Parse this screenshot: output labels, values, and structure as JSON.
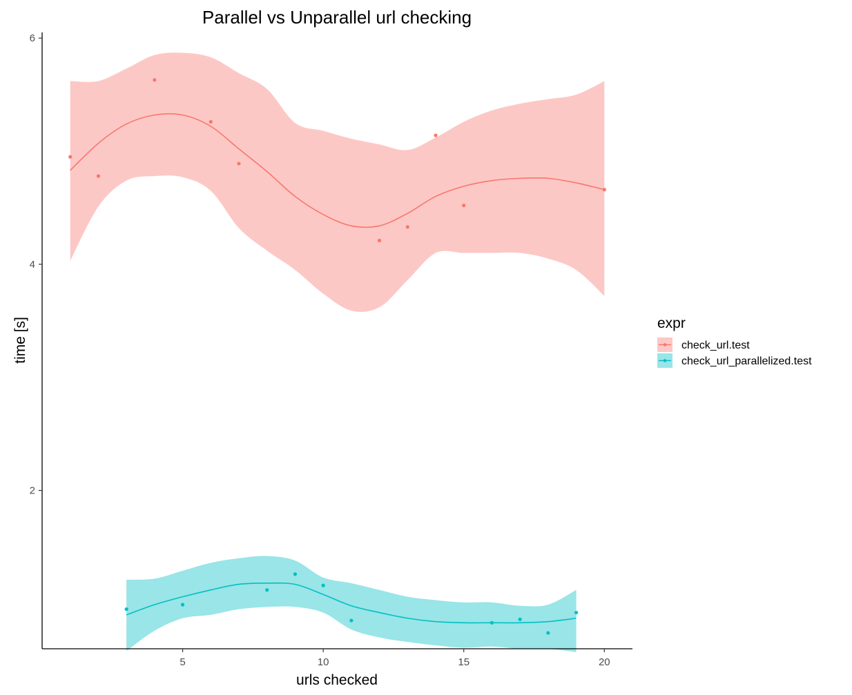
{
  "chart_data": {
    "type": "scatter",
    "title": "Parallel vs Unparallel url checking",
    "xlabel": "urls checked",
    "ylabel": "time [s]",
    "xlim": [
      0.0,
      21.0
    ],
    "ylim": [
      0.6,
      6.05
    ],
    "x_ticks": [
      5,
      10,
      15,
      20
    ],
    "y_ticks": [
      2,
      4,
      6
    ],
    "grid": false,
    "legend": {
      "title": "expr",
      "position": "right"
    },
    "series": [
      {
        "name": "check_url.test",
        "color": "#F8766D",
        "band_color": "#F8766D",
        "points": [
          [
            1,
            4.95
          ],
          [
            2,
            4.78
          ],
          [
            4,
            5.63
          ],
          [
            6,
            5.26
          ],
          [
            7,
            4.89
          ],
          [
            12,
            4.21
          ],
          [
            13,
            4.33
          ],
          [
            14,
            5.14
          ],
          [
            15,
            4.52
          ],
          [
            20,
            4.66
          ]
        ],
        "smooth": [
          [
            1,
            4.83
          ],
          [
            2,
            5.07
          ],
          [
            3,
            5.24
          ],
          [
            4,
            5.32
          ],
          [
            5,
            5.32
          ],
          [
            6,
            5.22
          ],
          [
            7,
            5.02
          ],
          [
            8,
            4.82
          ],
          [
            9,
            4.6
          ],
          [
            10,
            4.44
          ],
          [
            11,
            4.34
          ],
          [
            12,
            4.34
          ],
          [
            13,
            4.45
          ],
          [
            14,
            4.6
          ],
          [
            15,
            4.69
          ],
          [
            16,
            4.74
          ],
          [
            17,
            4.76
          ],
          [
            18,
            4.76
          ],
          [
            19,
            4.72
          ],
          [
            20,
            4.66
          ]
        ],
        "band_upper": [
          [
            1,
            5.62
          ],
          [
            2,
            5.62
          ],
          [
            3,
            5.73
          ],
          [
            4,
            5.85
          ],
          [
            5,
            5.87
          ],
          [
            6,
            5.83
          ],
          [
            7,
            5.69
          ],
          [
            8,
            5.55
          ],
          [
            9,
            5.25
          ],
          [
            10,
            5.18
          ],
          [
            11,
            5.11
          ],
          [
            12,
            5.06
          ],
          [
            13,
            5.01
          ],
          [
            14,
            5.12
          ],
          [
            15,
            5.26
          ],
          [
            16,
            5.36
          ],
          [
            17,
            5.42
          ],
          [
            18,
            5.46
          ],
          [
            19,
            5.5
          ],
          [
            20,
            5.62
          ]
        ],
        "band_lower": [
          [
            1,
            4.03
          ],
          [
            2,
            4.51
          ],
          [
            3,
            4.74
          ],
          [
            4,
            4.78
          ],
          [
            5,
            4.77
          ],
          [
            6,
            4.65
          ],
          [
            7,
            4.32
          ],
          [
            8,
            4.12
          ],
          [
            9,
            3.95
          ],
          [
            10,
            3.74
          ],
          [
            11,
            3.59
          ],
          [
            12,
            3.62
          ],
          [
            13,
            3.86
          ],
          [
            14,
            4.1
          ],
          [
            15,
            4.1
          ],
          [
            16,
            4.1
          ],
          [
            17,
            4.1
          ],
          [
            18,
            4.05
          ],
          [
            19,
            3.95
          ],
          [
            20,
            3.72
          ]
        ]
      },
      {
        "name": "check_url_parallelized.test",
        "color": "#00BFC4",
        "band_color": "#00BFC4",
        "points": [
          [
            3,
            0.95
          ],
          [
            5,
            0.99
          ],
          [
            8,
            1.12
          ],
          [
            9,
            1.26
          ],
          [
            10,
            1.16
          ],
          [
            11,
            0.85
          ],
          [
            16,
            0.83
          ],
          [
            17,
            0.86
          ],
          [
            18,
            0.74
          ],
          [
            19,
            0.92
          ]
        ],
        "smooth": [
          [
            3,
            0.9
          ],
          [
            4,
            0.99
          ],
          [
            5,
            1.06
          ],
          [
            6,
            1.12
          ],
          [
            7,
            1.17
          ],
          [
            8,
            1.18
          ],
          [
            9,
            1.17
          ],
          [
            10,
            1.08
          ],
          [
            11,
            0.98
          ],
          [
            12,
            0.92
          ],
          [
            13,
            0.87
          ],
          [
            14,
            0.84
          ],
          [
            15,
            0.83
          ],
          [
            16,
            0.83
          ],
          [
            17,
            0.83
          ],
          [
            18,
            0.84
          ],
          [
            19,
            0.87
          ]
        ],
        "band_upper": [
          [
            3,
            1.21
          ],
          [
            4,
            1.22
          ],
          [
            5,
            1.29
          ],
          [
            6,
            1.36
          ],
          [
            7,
            1.4
          ],
          [
            8,
            1.42
          ],
          [
            9,
            1.38
          ],
          [
            10,
            1.23
          ],
          [
            11,
            1.18
          ],
          [
            12,
            1.12
          ],
          [
            13,
            1.06
          ],
          [
            14,
            1.03
          ],
          [
            15,
            1.01
          ],
          [
            16,
            1.01
          ],
          [
            17,
            0.98
          ],
          [
            18,
            0.99
          ],
          [
            19,
            1.12
          ]
        ],
        "band_lower": [
          [
            3,
            0.58
          ],
          [
            4,
            0.76
          ],
          [
            5,
            0.87
          ],
          [
            6,
            0.9
          ],
          [
            7,
            0.95
          ],
          [
            8,
            0.97
          ],
          [
            9,
            0.97
          ],
          [
            10,
            0.92
          ],
          [
            11,
            0.77
          ],
          [
            12,
            0.7
          ],
          [
            13,
            0.66
          ],
          [
            14,
            0.63
          ],
          [
            15,
            0.61
          ],
          [
            16,
            0.62
          ],
          [
            17,
            0.6
          ],
          [
            18,
            0.6
          ],
          [
            19,
            0.57
          ]
        ]
      }
    ]
  }
}
